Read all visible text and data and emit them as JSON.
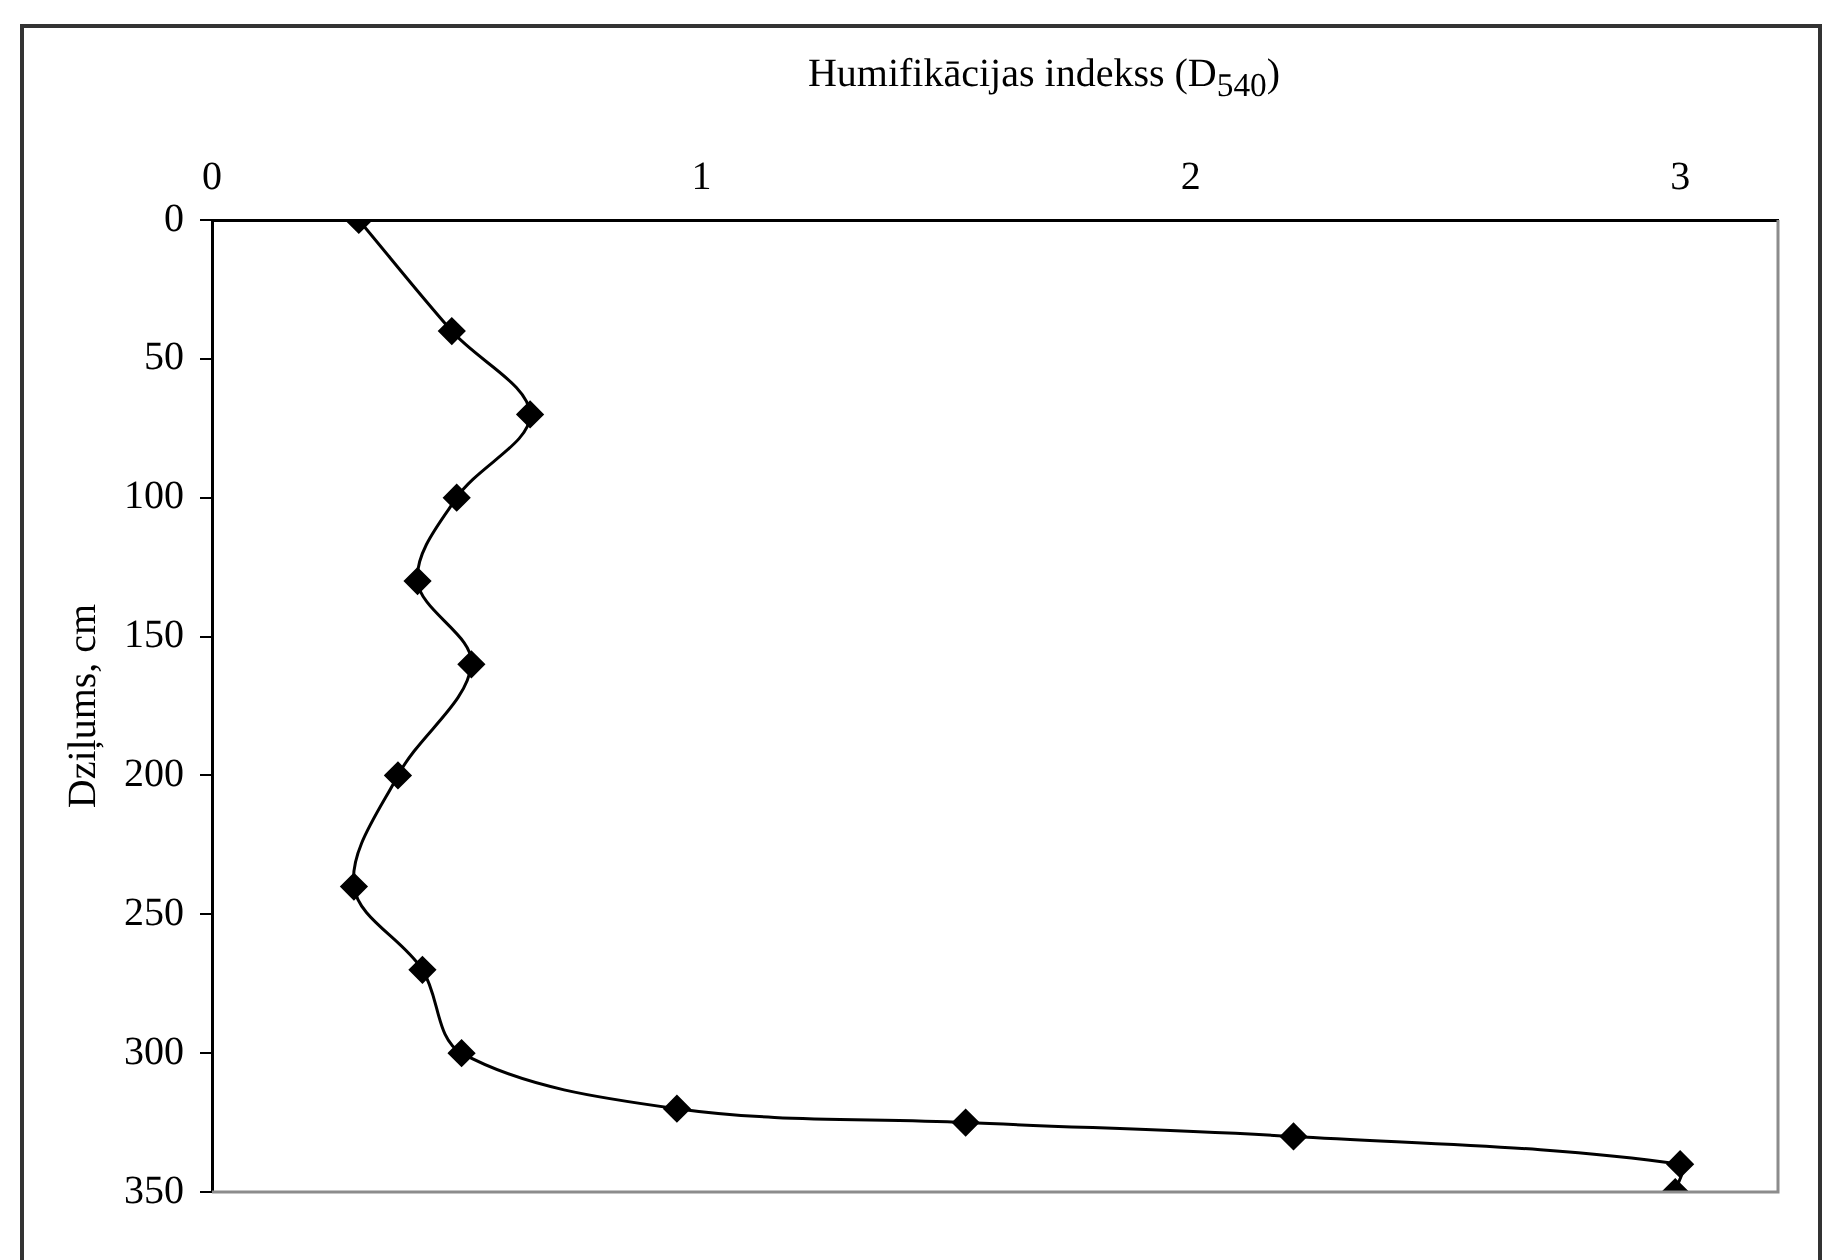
{
  "chart_data": {
    "type": "line",
    "xlabel": "Humifikācijas indekss (D$_{540}$)",
    "ylabel": "Dziļums, cm",
    "xlim": [
      0,
      3.2
    ],
    "xticks": [
      0,
      1,
      2,
      3
    ],
    "ylim": [
      350,
      0
    ],
    "yticks": [
      0,
      50,
      100,
      150,
      200,
      250,
      300,
      350
    ],
    "x": [
      0.3,
      0.49,
      0.65,
      0.5,
      0.42,
      0.53,
      0.38,
      0.29,
      0.43,
      0.51,
      0.95,
      1.54,
      2.21,
      3.0,
      2.99
    ],
    "values": [
      0,
      40,
      70,
      100,
      130,
      160,
      200,
      240,
      270,
      300,
      320,
      325,
      330,
      340,
      350
    ],
    "color": "#000000",
    "marker": "diamond",
    "grid": false
  }
}
